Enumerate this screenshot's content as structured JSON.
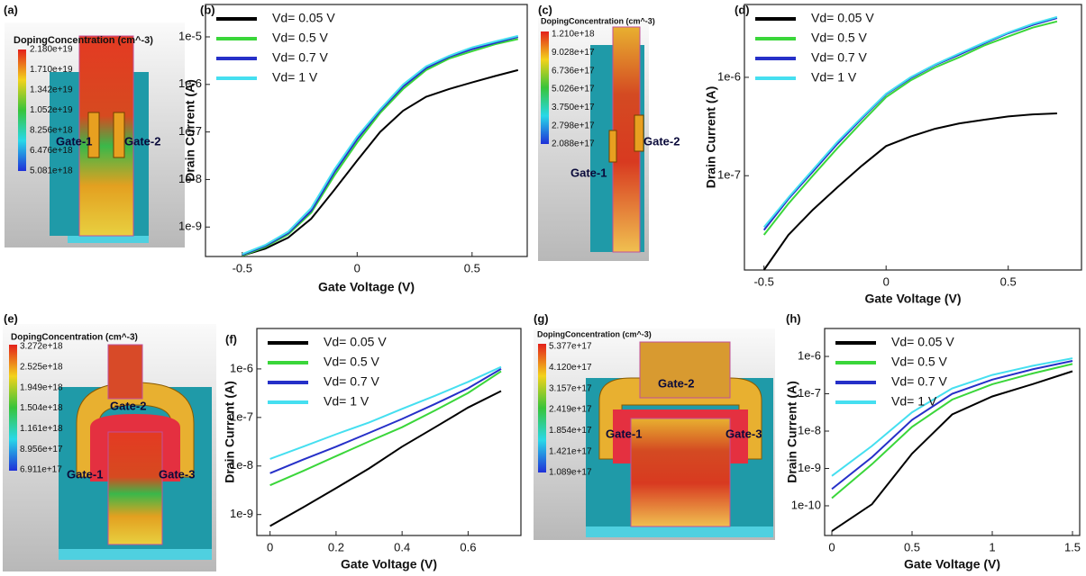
{
  "device_images": [
    {
      "label": "(a)",
      "colorbar_title": "DopingConcentration (cm^-3)",
      "colorbar_labels": [
        "2.180e+19",
        "1.710e+19",
        "1.342e+19",
        "1.052e+19",
        "8.256e+18",
        "6.476e+18",
        "5.081e+18"
      ],
      "gates": [
        "Gate-1",
        "Gate-2"
      ]
    },
    {
      "label": "(c)",
      "colorbar_title": "DopingConcentration (cm^-3)",
      "colorbar_labels": [
        "1.210e+18",
        "9.028e+17",
        "6.736e+17",
        "5.026e+17",
        "3.750e+17",
        "2.798e+17",
        "2.088e+17"
      ],
      "gates": [
        "Gate-1",
        "Gate-2"
      ]
    },
    {
      "label": "(e)",
      "colorbar_title": "DopingConcentration (cm^-3)",
      "colorbar_labels": [
        "3.272e+18",
        "2.525e+18",
        "1.949e+18",
        "1.504e+18",
        "1.161e+18",
        "8.956e+17",
        "6.911e+17"
      ],
      "gates": [
        "Gate-2",
        "Gate-1",
        "Gate-3"
      ]
    },
    {
      "label": "(g)",
      "colorbar_title": "DopingConcentration (cm^-3)",
      "colorbar_labels": [
        "5.377e+17",
        "4.120e+17",
        "3.157e+17",
        "2.419e+17",
        "1.854e+17",
        "1.421e+17",
        "1.089e+17"
      ],
      "gates": [
        "Gate-2",
        "Gate-1",
        "Gate-3"
      ]
    }
  ],
  "chart_data": [
    {
      "type": "line",
      "label": "(b)",
      "xlabel": "Gate Voltage (V)",
      "ylabel": "Drain Current (A)",
      "yscale": "log",
      "legend": "upper left",
      "xlim": [
        -0.66,
        0.74
      ],
      "ylim": [
        2.4e-10,
        4.8e-05
      ],
      "xticks": [
        -0.5,
        0,
        0.5
      ],
      "yticks": [
        {
          "value": 1e-09,
          "label": "1e-9"
        },
        {
          "value": 1e-08,
          "label": "1e-8"
        },
        {
          "value": 1e-07,
          "label": "1e-7"
        },
        {
          "value": 1e-06,
          "label": "1e-6"
        },
        {
          "value": 1e-05,
          "label": "1e-5"
        }
      ],
      "x": [
        -0.5,
        -0.4,
        -0.3,
        -0.2,
        -0.1,
        0,
        0.1,
        0.2,
        0.3,
        0.4,
        0.5,
        0.6,
        0.7
      ],
      "series": [
        {
          "name": "Vd= 0.05 V",
          "color": "#000000",
          "values": [
            2.5e-10,
            3.5e-10,
            6e-10,
            1.5e-09,
            6e-09,
            2.5e-08,
            1e-07,
            2.8e-07,
            5.5e-07,
            8e-07,
            1.1e-06,
            1.5e-06,
            2e-06
          ]
        },
        {
          "name": "Vd= 0.5 V",
          "color": "#3ad63a",
          "values": [
            2.5e-10,
            3.8e-10,
            7e-10,
            2e-09,
            1.2e-08,
            6e-08,
            2.5e-07,
            8e-07,
            2e-06,
            3.5e-06,
            5e-06,
            7e-06,
            9e-06
          ]
        },
        {
          "name": "Vd= 0.7 V",
          "color": "#2630c8",
          "values": [
            2.6e-10,
            4e-10,
            7.5e-10,
            2.2e-09,
            1.4e-08,
            7e-08,
            2.8e-07,
            9e-07,
            2.2e-06,
            3.8e-06,
            5.5e-06,
            7.5e-06,
            1e-05
          ]
        },
        {
          "name": "Vd= 1 V",
          "color": "#45dff0",
          "values": [
            2.7e-10,
            4.2e-10,
            8e-10,
            2.5e-09,
            1.6e-08,
            8e-08,
            3e-07,
            1e-06,
            2.4e-06,
            4e-06,
            6e-06,
            8e-06,
            1.05e-05
          ]
        }
      ]
    },
    {
      "type": "line",
      "label": "(d)",
      "xlabel": "Gate Voltage (V)",
      "ylabel": "Drain Current (A)",
      "yscale": "log",
      "legend": "upper left",
      "xlim": [
        -0.58,
        0.8
      ],
      "ylim": [
        1.1e-08,
        5.5e-06
      ],
      "xticks": [
        -0.5,
        0,
        0.5
      ],
      "yticks": [
        {
          "value": 1e-07,
          "label": "1e-7"
        },
        {
          "value": 1e-06,
          "label": "1e-6"
        }
      ],
      "x": [
        -0.5,
        -0.4,
        -0.3,
        -0.2,
        -0.1,
        0,
        0.1,
        0.2,
        0.3,
        0.4,
        0.5,
        0.6,
        0.7
      ],
      "series": [
        {
          "name": "Vd= 0.05 V",
          "color": "#000000",
          "values": [
            1.1e-08,
            2.5e-08,
            4.5e-08,
            7.6e-08,
            1.26e-07,
            2e-07,
            2.5e-07,
            3e-07,
            3.4e-07,
            3.7e-07,
            4e-07,
            4.2e-07,
            4.3e-07
          ]
        },
        {
          "name": "Vd= 0.5 V",
          "color": "#3ad63a",
          "values": [
            2.5e-08,
            5.2e-08,
            1e-07,
            1.9e-07,
            3.5e-07,
            6.3e-07,
            9.3e-07,
            1.26e-06,
            1.6e-06,
            2.1e-06,
            2.6e-06,
            3.2e-06,
            3.7e-06
          ]
        },
        {
          "name": "Vd= 0.7 V",
          "color": "#2630c8",
          "values": [
            2.8e-08,
            5.8e-08,
            1.1e-07,
            2.1e-07,
            3.8e-07,
            6.7e-07,
            9.8e-07,
            1.33e-06,
            1.7e-06,
            2.2e-06,
            2.8e-06,
            3.4e-06,
            4e-06
          ]
        },
        {
          "name": "Vd= 1 V",
          "color": "#45dff0",
          "values": [
            3e-08,
            6e-08,
            1.15e-07,
            2.2e-07,
            3.9e-07,
            6.8e-07,
            1e-06,
            1.35e-06,
            1.75e-06,
            2.25e-06,
            2.85e-06,
            3.5e-06,
            4.1e-06
          ]
        }
      ]
    },
    {
      "type": "line",
      "label": "(f)",
      "xlabel": "Gate Voltage (V)",
      "ylabel": "Drain Current (A)",
      "yscale": "log",
      "legend": "upper left",
      "xlim": [
        -0.04,
        0.76
      ],
      "ylim": [
        3.7e-10,
        6.8e-06
      ],
      "xticks": [
        0,
        0.2,
        0.4,
        0.6
      ],
      "yticks": [
        {
          "value": 1e-09,
          "label": "1e-9"
        },
        {
          "value": 1e-08,
          "label": "1e-8"
        },
        {
          "value": 1e-07,
          "label": "1e-7"
        },
        {
          "value": 1e-06,
          "label": "1e-6"
        }
      ],
      "x": [
        0,
        0.1,
        0.2,
        0.3,
        0.4,
        0.5,
        0.6,
        0.7
      ],
      "series": [
        {
          "name": "Vd= 0.05 V",
          "color": "#000000",
          "values": [
            5.8e-10,
            1.4e-09,
            3.5e-09,
            8.9e-09,
            2.5e-08,
            6.3e-08,
            1.6e-07,
            3.5e-07
          ]
        },
        {
          "name": "Vd= 0.5 V",
          "color": "#3ad63a",
          "values": [
            4e-09,
            7.9e-09,
            1.6e-08,
            3.2e-08,
            6.3e-08,
            1.4e-07,
            3.2e-07,
            8.9e-07
          ]
        },
        {
          "name": "Vd= 0.7 V",
          "color": "#2630c8",
          "values": [
            7.1e-09,
            1.35e-08,
            2.5e-08,
            4.8e-08,
            9.3e-08,
            1.9e-07,
            4e-07,
            1e-06
          ]
        },
        {
          "name": "Vd= 1 V",
          "color": "#45dff0",
          "values": [
            1.4e-08,
            2.5e-08,
            4.5e-08,
            7.9e-08,
            1.5e-07,
            2.8e-07,
            5.4e-07,
            1.1e-06
          ]
        }
      ]
    },
    {
      "type": "line",
      "label": "(h)",
      "xlabel": "Gate Voltage (V)",
      "ylabel": "Drain Current (A)",
      "yscale": "log",
      "legend": "upper left",
      "xlim": [
        -0.045,
        1.545
      ],
      "ylim": [
        1.6e-11,
        5.6e-06
      ],
      "xticks": [
        0,
        0.5,
        1,
        1.5
      ],
      "yticks": [
        {
          "value": 1e-10,
          "label": "1e-10"
        },
        {
          "value": 1e-09,
          "label": "1e-9"
        },
        {
          "value": 1e-08,
          "label": "1e-8"
        },
        {
          "value": 1e-07,
          "label": "1e-7"
        },
        {
          "value": 1e-06,
          "label": "1e-6"
        }
      ],
      "x": [
        0,
        0.25,
        0.5,
        0.75,
        1,
        1.25,
        1.5
      ],
      "series": [
        {
          "name": "Vd= 0.05 V",
          "color": "#000000",
          "values": [
            2.1e-11,
            1.1e-10,
            2.5e-09,
            2.8e-08,
            8.5e-08,
            1.8e-07,
            4e-07
          ]
        },
        {
          "name": "Vd= 0.5 V",
          "color": "#3ad63a",
          "values": [
            1.6e-10,
            1.3e-09,
            1.3e-08,
            7e-08,
            1.8e-07,
            3.5e-07,
            6.3e-07
          ]
        },
        {
          "name": "Vd= 0.7 V",
          "color": "#2630c8",
          "values": [
            2.8e-10,
            2e-09,
            2e-08,
            1e-07,
            2.4e-07,
            4.5e-07,
            7.6e-07
          ]
        },
        {
          "name": "Vd= 1 V",
          "color": "#45dff0",
          "values": [
            6.3e-10,
            4e-09,
            3.2e-08,
            1.4e-07,
            3.2e-07,
            5.6e-07,
            8.9e-07
          ]
        }
      ]
    }
  ]
}
